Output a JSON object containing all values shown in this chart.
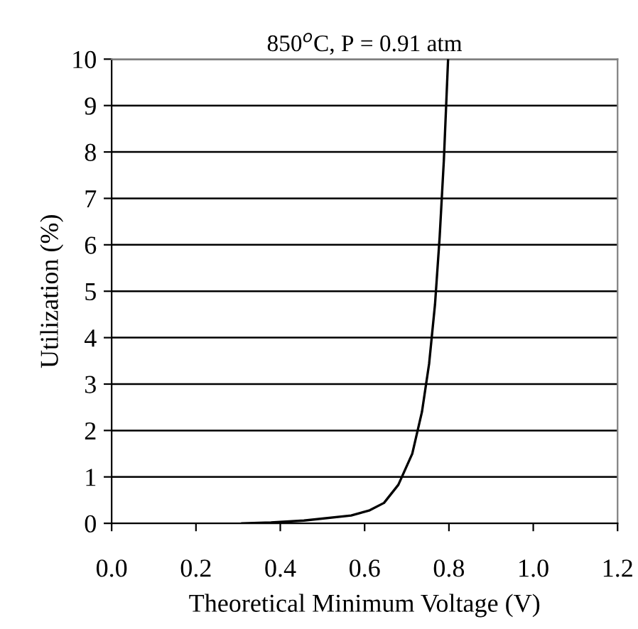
{
  "chart_data": {
    "type": "line",
    "title": "850$^{o}$C, P = 0.91 atm",
    "xlabel": "Theoretical Minimum Voltage (V)",
    "ylabel": "Utilization (%)",
    "x": [
      0.31,
      0.378,
      0.456,
      0.568,
      0.612,
      0.646,
      0.68,
      0.713,
      0.736,
      0.753,
      0.767,
      0.778,
      0.788,
      0.798
    ],
    "series": [
      {
        "color": "#000000",
        "values": [
          0,
          0.02,
          0.06,
          0.17,
          0.28,
          0.44,
          0.83,
          1.5,
          2.4,
          3.44,
          4.72,
          6.17,
          7.83,
          10
        ]
      }
    ],
    "xlim": [
      0,
      1.2
    ],
    "ylim": [
      0,
      10
    ],
    "xticks": [
      {
        "value": 0,
        "label": "0.0"
      },
      0.2,
      0.4,
      0.6,
      0.8,
      {
        "value": 1,
        "label": "1.0"
      },
      1.2
    ],
    "yticks": [
      0,
      1,
      2,
      3,
      4,
      5,
      6,
      7,
      8,
      9,
      10
    ],
    "grid": "y",
    "legend": false,
    "marker": "none",
    "line_style": "solid"
  }
}
